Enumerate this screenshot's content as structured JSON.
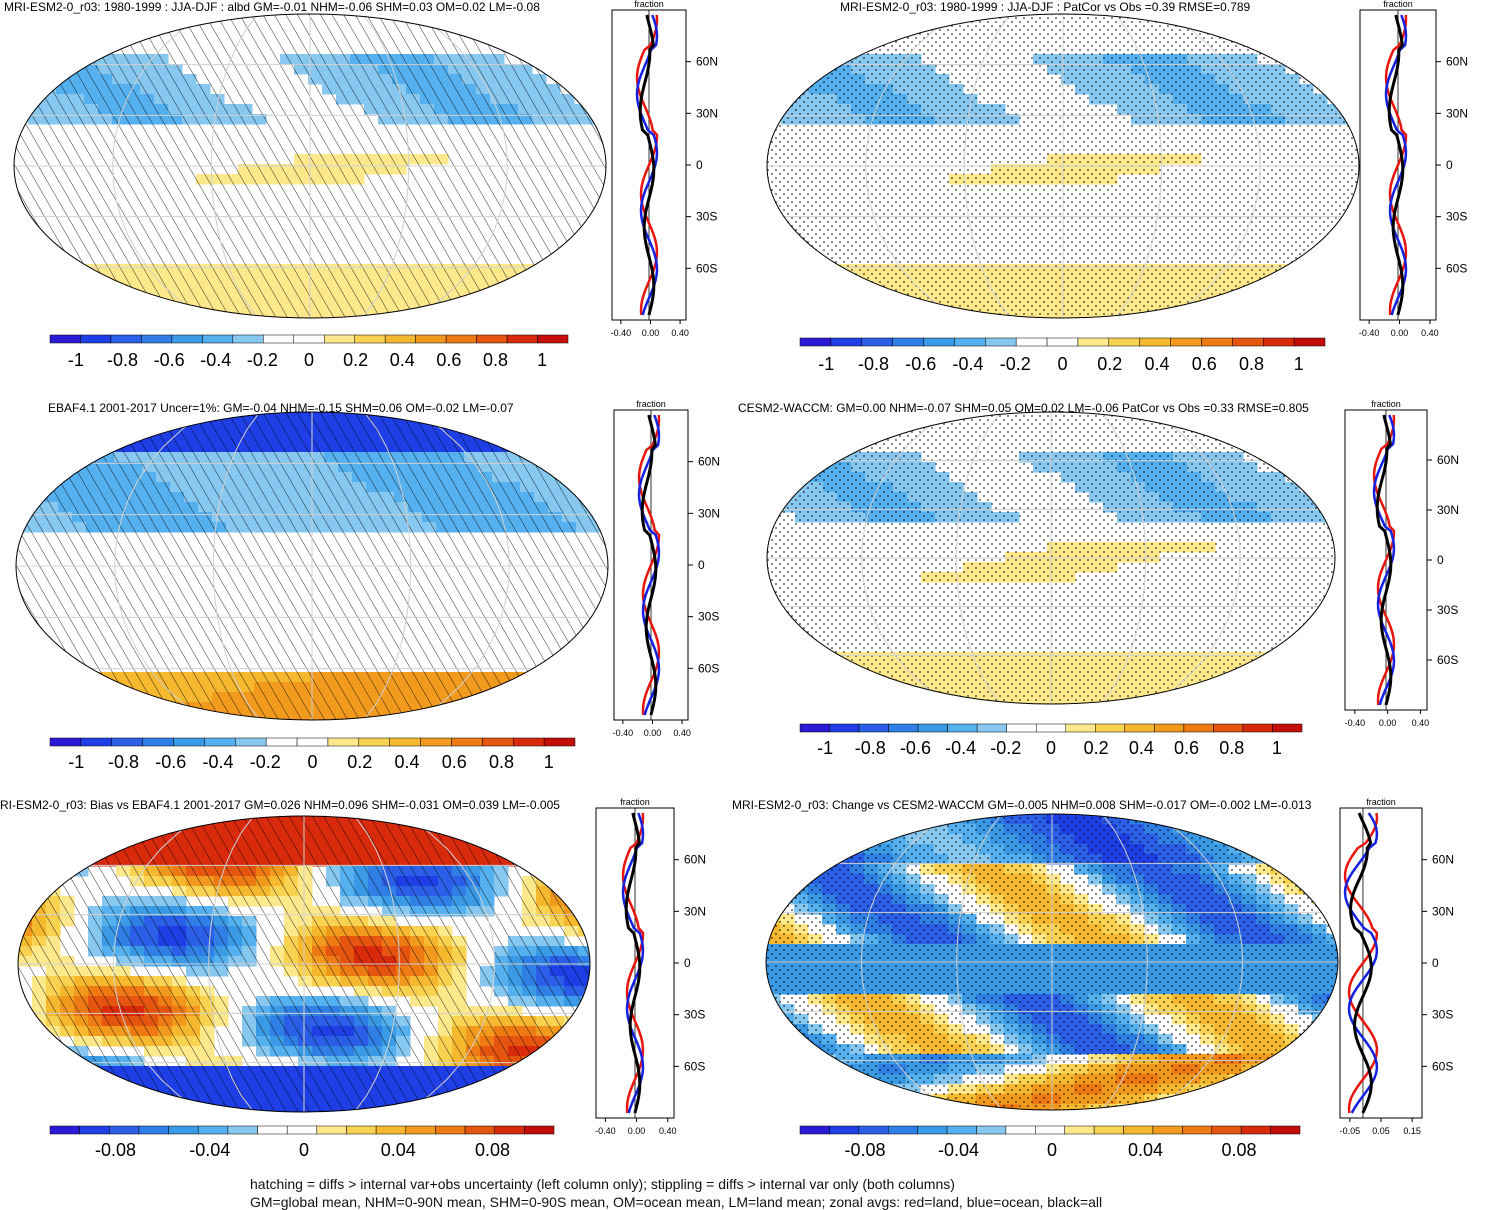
{
  "panels": [
    {
      "id": "p1",
      "title": "MRI-ESM2-0_r03: 1980-1999 : JJA-DJF : albd GM=-0.01 NHM=-0.06 SHM=0.03 OM=0.02 LM=-0.08",
      "overlay": "hatch",
      "pattern": "mild",
      "colorbar": "full",
      "zonal_scale": "a",
      "zonal_layout": "top"
    },
    {
      "id": "p2",
      "title": "MRI-ESM2-0_r03: 1980-1999 : JJA-DJF : PatCor vs Obs =0.39 RMSE=0.789",
      "overlay": "stipple",
      "pattern": "mild",
      "colorbar": "full",
      "zonal_scale": "a",
      "zonal_layout": "top"
    },
    {
      "id": "p3",
      "title": "EBAF4.1 2001-2017 Uncer=1%: GM=-0.04 NHM=-0.15 SHM=0.06 OM=-0.02 LM=-0.07",
      "overlay": "hatch",
      "pattern": "obs",
      "colorbar": "full",
      "zonal_scale": "a",
      "zonal_layout": "mid"
    },
    {
      "id": "p4",
      "title": "CESM2-WACCM: GM=0.00 NHM=-0.07 SHM=0.05 OM=0.02 LM=-0.06 PatCor vs Obs =0.33 RMSE=0.805",
      "overlay": "stipple",
      "pattern": "mild",
      "colorbar": "full",
      "zonal_scale": "a",
      "zonal_layout": "mid"
    },
    {
      "id": "p5",
      "title": "RI-ESM2-0_r03: Bias vs EBAF4.1 2001-2017 GM=0.026 NHM=0.096 SHM=-0.031 OM=0.039 LM=-0.005",
      "overlay": "hatch",
      "pattern": "bias",
      "colorbar": "small",
      "zonal_scale": "a",
      "zonal_layout": "bot"
    },
    {
      "id": "p6",
      "title": "MRI-ESM2-0_r03: Change vs CESM2-WACCM GM=-0.005 NHM=0.008 SHM=-0.017 OM=-0.002 LM=-0.013",
      "overlay": "stipple",
      "pattern": "change",
      "colorbar": "small",
      "zonal_scale": "b",
      "zonal_layout": "bot"
    }
  ],
  "zonal_axis_title": "fraction",
  "lat_labels": [
    "60N",
    "30N",
    "0",
    "30S",
    "60S"
  ],
  "zonal_ticks": {
    "a": [
      "-0.40",
      "0.00",
      "0.40"
    ],
    "b": [
      "-0.05",
      "0.05",
      "0.15"
    ]
  },
  "colorbars": {
    "full": [
      "-1",
      "-0.8",
      "-0.6",
      "-0.4",
      "-0.2",
      "0",
      "0.2",
      "0.4",
      "0.6",
      "0.8",
      "1"
    ],
    "small": [
      "-0.08",
      "-0.04",
      "0",
      "0.04",
      "0.08"
    ]
  },
  "palette": [
    "#2b1bd6",
    "#1f3fe6",
    "#2b5fe8",
    "#2f7fe6",
    "#3a9ae6",
    "#54b0ee",
    "#86c8f0",
    "#ffffff",
    "#ffffff",
    "#fde98c",
    "#f9d252",
    "#f6b82e",
    "#f29a1e",
    "#ee7a14",
    "#e6550f",
    "#d92a0c",
    "#c50d0a"
  ],
  "zonal_colors": {
    "land": "#e8150c",
    "ocean": "#1421e0",
    "all": "#000000"
  },
  "footer": {
    "line1": "hatching = diffs > internal var+obs uncertainty (left column only); stippling = diffs > internal var only (both columns)",
    "line2": "GM=global mean, NHM=0-90N mean, SHM=0-90S mean, OM=ocean mean, LM=land mean; zonal avgs: red=land, blue=ocean, black=all"
  }
}
